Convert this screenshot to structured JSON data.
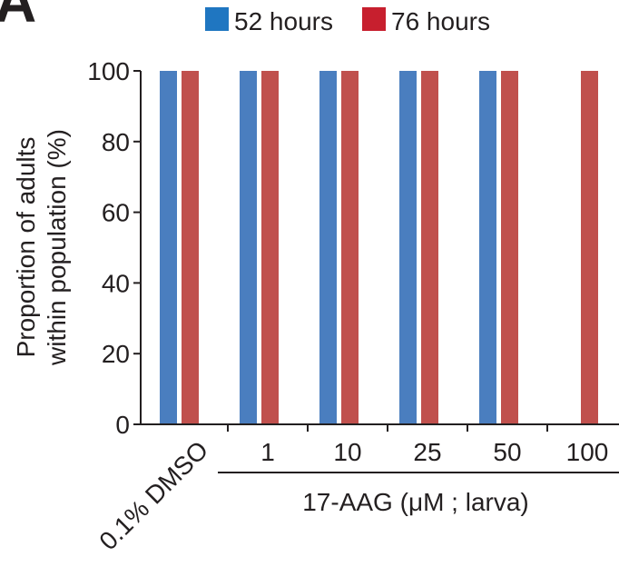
{
  "panel_label": "A",
  "chart_data": {
    "type": "bar",
    "categories": [
      "0.1% DMSO",
      "1",
      "10",
      "25",
      "50",
      "100"
    ],
    "series": [
      {
        "name": "52 hours",
        "values": [
          100,
          100,
          100,
          100,
          100,
          0
        ],
        "color": "#4a7ebf"
      },
      {
        "name": "76 hours",
        "values": [
          100,
          100,
          100,
          100,
          100,
          100
        ],
        "color": "#c0504d"
      }
    ],
    "legend_colors": [
      "#1f76c1",
      "#c71f2e"
    ],
    "ylabel_lines": [
      "Proportion of adults",
      "within population (%)"
    ],
    "ylim": [
      0,
      100
    ],
    "yticks": [
      0,
      20,
      40,
      60,
      80,
      100
    ],
    "group_label": "17-AAG (μM ; larva)",
    "legend_position": "top",
    "grid": false
  }
}
